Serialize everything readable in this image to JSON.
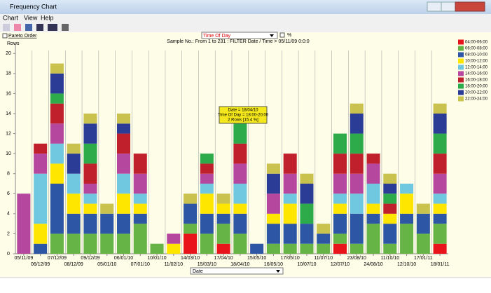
{
  "window": {
    "title": "Frequency Chart",
    "menu": [
      "Chart",
      "View",
      "Help"
    ]
  },
  "controls": {
    "pareto": "Pareto Order",
    "field": "Time Of Day",
    "percent": "%",
    "x_field": "Date"
  },
  "chart_data": {
    "type": "bar",
    "stacked": true,
    "subtitle": "Sample No.: From 1 to 231 : FILTER Date / Time  > 05/11/09 0:0:0",
    "y_label": "Rows",
    "categories": [
      "05/11/09",
      "06/12/09",
      "07/12/09",
      "08/12/09",
      "09/12/09",
      "05/01/10",
      "06/01/10",
      "07/01/10",
      "10/01/10",
      "11/02/10",
      "14/03/10",
      "15/03/10",
      "17/04/10",
      "18/04/10",
      "15/05/10",
      "16/05/10",
      "17/05/10",
      "10/07/10",
      "11/07/10",
      "12/07/10",
      "23/08/10",
      "24/08/10",
      "11/10/10",
      "12/10/10",
      "17/01/11",
      "18/01/11"
    ],
    "series": [
      {
        "name": "04:00-06:00",
        "color": "#e8131b",
        "values": [
          0,
          0,
          0,
          0,
          0,
          0,
          0,
          0,
          0,
          0,
          2,
          0,
          1,
          0,
          0,
          0,
          0,
          0,
          0,
          1,
          0,
          0,
          0,
          0,
          0,
          1
        ]
      },
      {
        "name": "06:00-08:00",
        "color": "#66b446",
        "values": [
          0,
          0,
          2,
          2,
          2,
          2,
          2,
          3,
          1,
          0,
          1,
          2,
          2,
          2,
          0,
          1,
          1,
          1,
          1,
          1,
          1,
          3,
          1,
          3,
          2,
          2
        ]
      },
      {
        "name": "08:00-10:00",
        "color": "#2d56a5",
        "values": [
          0,
          1,
          5,
          2,
          2,
          2,
          2,
          1,
          0,
          0,
          2,
          2,
          1,
          2,
          1,
          2,
          2,
          2,
          1,
          2,
          3,
          1,
          2,
          1,
          2,
          1
        ]
      },
      {
        "name": "10:00-12:00",
        "color": "#ffe600",
        "values": [
          0,
          2,
          2,
          2,
          1,
          0,
          2,
          1,
          0,
          1,
          0,
          2,
          1,
          1,
          0,
          1,
          2,
          0,
          0,
          1,
          0,
          1,
          1,
          2,
          0,
          1
        ]
      },
      {
        "name": "12:00-14:00",
        "color": "#6fc8df",
        "values": [
          0,
          5,
          2,
          2,
          1,
          0,
          2,
          1,
          0,
          0,
          0,
          1,
          0,
          2,
          0,
          0,
          1,
          0,
          0,
          1,
          2,
          2,
          0,
          1,
          0,
          1
        ]
      },
      {
        "name": "14:00-16:00",
        "color": "#b5479e",
        "values": [
          6,
          2,
          2,
          0,
          1,
          0,
          2,
          2,
          0,
          1,
          0,
          1,
          0,
          2,
          0,
          2,
          2,
          0,
          0,
          2,
          2,
          2,
          0,
          0,
          0,
          2
        ]
      },
      {
        "name": "16:00-18:00",
        "color": "#c0202b",
        "values": [
          0,
          1,
          2,
          0,
          2,
          0,
          2,
          2,
          0,
          0,
          0,
          1,
          0,
          2,
          0,
          0,
          2,
          0,
          0,
          2,
          2,
          1,
          1,
          0,
          0,
          2
        ]
      },
      {
        "name": "18:00-20:00",
        "color": "#2daa4a",
        "values": [
          0,
          0,
          1,
          0,
          2,
          0,
          0,
          0,
          0,
          0,
          0,
          1,
          0,
          2,
          0,
          0,
          0,
          2,
          0,
          2,
          2,
          0,
          1,
          0,
          0,
          2
        ]
      },
      {
        "name": "20:00-22:00",
        "color": "#2a3c96",
        "values": [
          0,
          0,
          2,
          2,
          2,
          0,
          1,
          0,
          0,
          0,
          0,
          0,
          0,
          0,
          0,
          2,
          0,
          2,
          0,
          0,
          2,
          0,
          1,
          0,
          0,
          2
        ]
      },
      {
        "name": "22:00-24:00",
        "color": "#c9c24e",
        "values": [
          0,
          0,
          1,
          1,
          1,
          1,
          1,
          0,
          0,
          0,
          1,
          0,
          1,
          0,
          0,
          1,
          0,
          1,
          1,
          0,
          1,
          0,
          1,
          0,
          1,
          1
        ]
      }
    ],
    "ylim": [
      0,
      21
    ],
    "yticks": [
      0,
      2,
      4,
      6,
      8,
      10,
      12,
      14,
      16,
      18,
      20
    ],
    "tooltip": [
      "Date = 18/04/10",
      "Time Of Day = 18:00-20:00",
      "2 Rows [15.4 %]"
    ]
  }
}
